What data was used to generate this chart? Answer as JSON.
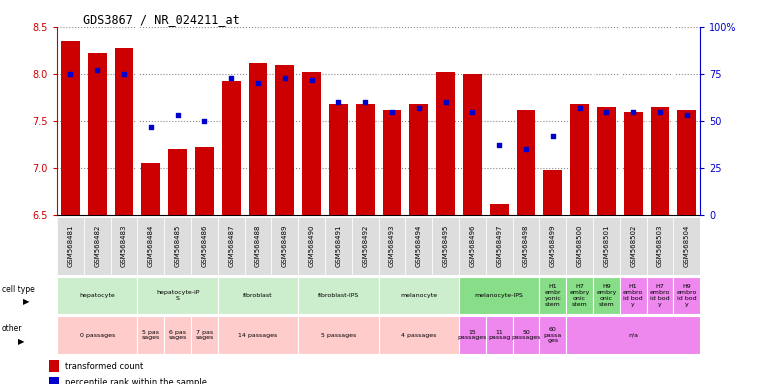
{
  "title": "GDS3867 / NR_024211_at",
  "samples": [
    "GSM568481",
    "GSM568482",
    "GSM568483",
    "GSM568484",
    "GSM568485",
    "GSM568486",
    "GSM568487",
    "GSM568488",
    "GSM568489",
    "GSM568490",
    "GSM568491",
    "GSM568492",
    "GSM568493",
    "GSM568494",
    "GSM568495",
    "GSM568496",
    "GSM568497",
    "GSM568498",
    "GSM568499",
    "GSM568500",
    "GSM568501",
    "GSM568502",
    "GSM568503",
    "GSM568504"
  ],
  "red_values": [
    8.35,
    8.22,
    8.28,
    7.05,
    7.2,
    7.22,
    7.92,
    8.12,
    8.1,
    8.02,
    7.68,
    7.68,
    7.62,
    7.68,
    8.02,
    8.0,
    6.62,
    7.62,
    6.98,
    7.68,
    7.65,
    7.6,
    7.65,
    7.62
  ],
  "blue_values": [
    75,
    77,
    75,
    47,
    53,
    50,
    73,
    70,
    73,
    72,
    60,
    60,
    55,
    57,
    60,
    55,
    37,
    35,
    42,
    57,
    55,
    55,
    55,
    53
  ],
  "ylim_left": [
    6.5,
    8.5
  ],
  "ylim_right": [
    0,
    100
  ],
  "yticks_left": [
    6.5,
    7.0,
    7.5,
    8.0,
    8.5
  ],
  "yticks_right": [
    0,
    25,
    50,
    75,
    100
  ],
  "ytick_labels_right": [
    "0",
    "25",
    "50",
    "75",
    "100%"
  ],
  "cell_type_groups": [
    {
      "label": "hepatocyte",
      "start": 0,
      "end": 3,
      "color": "#cceecc"
    },
    {
      "label": "hepatocyte-iP\nS",
      "start": 3,
      "end": 6,
      "color": "#cceecc"
    },
    {
      "label": "fibroblast",
      "start": 6,
      "end": 9,
      "color": "#cceecc"
    },
    {
      "label": "fibroblast-IPS",
      "start": 9,
      "end": 12,
      "color": "#cceecc"
    },
    {
      "label": "melanocyte",
      "start": 12,
      "end": 15,
      "color": "#cceecc"
    },
    {
      "label": "melanocyte-IPS",
      "start": 15,
      "end": 18,
      "color": "#88dd88"
    },
    {
      "label": "H1\nembr\nyonic\nstem",
      "start": 18,
      "end": 19,
      "color": "#88dd88"
    },
    {
      "label": "H7\nembry\nonic\nstem",
      "start": 19,
      "end": 20,
      "color": "#88dd88"
    },
    {
      "label": "H9\nembry\nonic\nstem",
      "start": 20,
      "end": 21,
      "color": "#88dd88"
    },
    {
      "label": "H1\nembro\nid bod\ny",
      "start": 21,
      "end": 22,
      "color": "#ee88ee"
    },
    {
      "label": "H7\nembro\nid bod\ny",
      "start": 22,
      "end": 23,
      "color": "#ee88ee"
    },
    {
      "label": "H9\nembro\nid bod\ny",
      "start": 23,
      "end": 24,
      "color": "#ee88ee"
    }
  ],
  "other_groups": [
    {
      "label": "0 passages",
      "start": 0,
      "end": 3,
      "color": "#ffcccc"
    },
    {
      "label": "5 pas\nsages",
      "start": 3,
      "end": 4,
      "color": "#ffcccc"
    },
    {
      "label": "6 pas\nsages",
      "start": 4,
      "end": 5,
      "color": "#ffcccc"
    },
    {
      "label": "7 pas\nsages",
      "start": 5,
      "end": 6,
      "color": "#ffcccc"
    },
    {
      "label": "14 passages",
      "start": 6,
      "end": 9,
      "color": "#ffcccc"
    },
    {
      "label": "5 passages",
      "start": 9,
      "end": 12,
      "color": "#ffcccc"
    },
    {
      "label": "4 passages",
      "start": 12,
      "end": 15,
      "color": "#ffcccc"
    },
    {
      "label": "15\npassages",
      "start": 15,
      "end": 16,
      "color": "#ee88ee"
    },
    {
      "label": "11\npassag",
      "start": 16,
      "end": 17,
      "color": "#ee88ee"
    },
    {
      "label": "50\npassages",
      "start": 17,
      "end": 18,
      "color": "#ee88ee"
    },
    {
      "label": "60\npassa\nges",
      "start": 18,
      "end": 19,
      "color": "#ee88ee"
    },
    {
      "label": "n/a",
      "start": 19,
      "end": 24,
      "color": "#ee88ee"
    }
  ],
  "bar_color": "#cc0000",
  "dot_color": "#0000cc",
  "grid_color": "#888888",
  "bg_color": "#ffffff",
  "tick_bg_color": "#dddddd",
  "label_color_left": "#cc0000",
  "label_color_right": "#0000cc",
  "border_color": "#000000"
}
